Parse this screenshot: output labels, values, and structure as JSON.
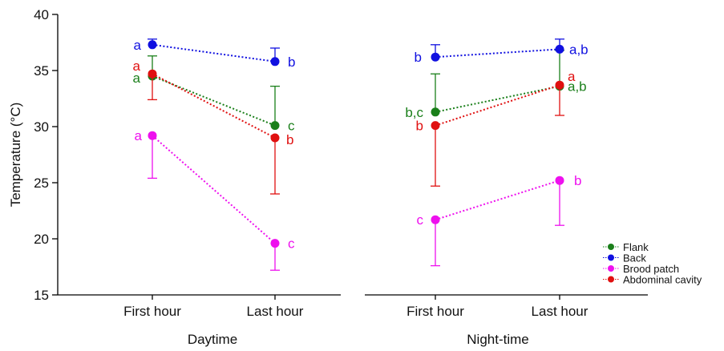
{
  "chart_data": {
    "type": "scatter",
    "ylabel": "Temperature (°C)",
    "ylim": [
      15,
      40
    ],
    "y_ticks": [
      "15",
      "20",
      "25",
      "30",
      "35",
      "40"
    ],
    "x_tick_labels": [
      "First hour",
      "Last hour",
      "First hour",
      "Last hour"
    ],
    "groups": [
      "Daytime",
      "Night-time"
    ],
    "legend_position": "bottom-right",
    "series": [
      {
        "name": "Flank",
        "color": "#1a7f1a",
        "values": [
          34.5,
          30.1,
          31.3,
          33.6
        ],
        "err_low": [
          34.5,
          30.1,
          31.3,
          33.6
        ],
        "err_high": [
          36.3,
          33.6,
          34.7,
          36.8
        ],
        "letters": [
          "a",
          "c",
          "b,c",
          "a,b"
        ]
      },
      {
        "name": "Back",
        "color": "#1010e0",
        "values": [
          37.3,
          35.8,
          36.2,
          36.9
        ],
        "err_low": [
          37.3,
          35.8,
          36.2,
          36.9
        ],
        "err_high": [
          37.8,
          37.0,
          37.3,
          37.8
        ],
        "letters": [
          "a",
          "b",
          "b",
          "a,b"
        ]
      },
      {
        "name": "Brood patch",
        "color": "#ee10ee",
        "values": [
          29.2,
          19.6,
          21.7,
          25.2
        ],
        "err_low": [
          25.4,
          17.2,
          17.6,
          21.2
        ],
        "err_high": [
          29.2,
          19.6,
          21.7,
          25.2
        ],
        "letters": [
          "a",
          "c",
          "c",
          "b"
        ]
      },
      {
        "name": "Abdominal cavity",
        "color": "#e01010",
        "values": [
          34.7,
          29.0,
          30.1,
          33.7
        ],
        "err_low": [
          32.4,
          24.0,
          24.7,
          31.0
        ],
        "err_high": [
          34.7,
          29.0,
          30.1,
          33.7
        ],
        "letters": [
          "a",
          "b",
          "b",
          "a"
        ]
      }
    ]
  }
}
